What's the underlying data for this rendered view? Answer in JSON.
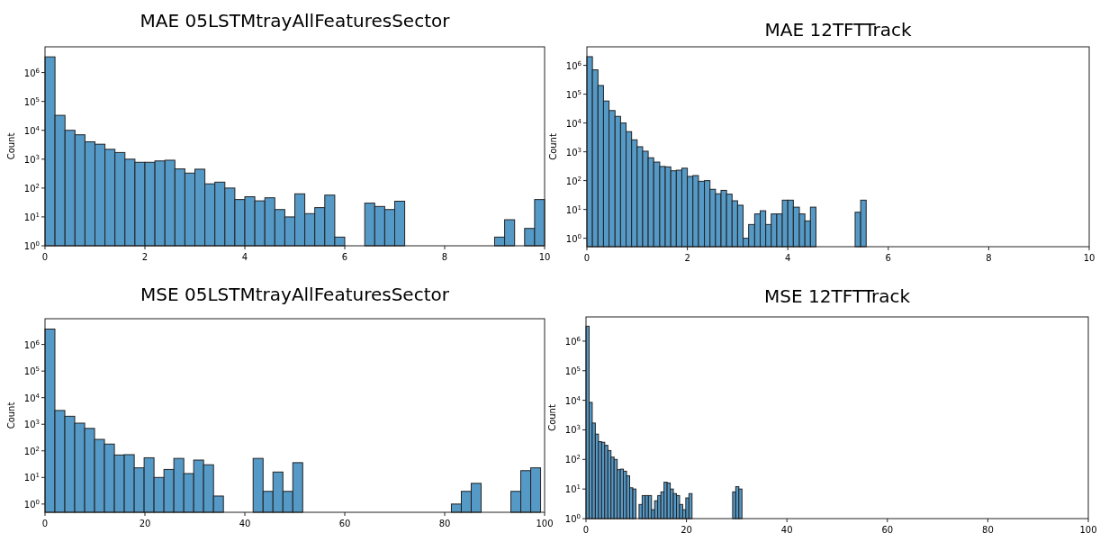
{
  "chart_data": [
    {
      "type": "histogram",
      "title": "MAE 05LSTMtrayAllFeaturesSector",
      "ylabel": "Count",
      "log": true,
      "color": "#5599c7",
      "xlim": [
        0,
        10
      ],
      "xticks": [
        0,
        2,
        4,
        6,
        8,
        10
      ],
      "ylim": [
        1,
        7800000
      ],
      "yticks": [
        {
          "value": 1,
          "label": "10$^{0}$"
        },
        {
          "value": 10,
          "label": "10$^{1}$"
        },
        {
          "value": 100,
          "label": "10$^{2}$"
        },
        {
          "value": 1000,
          "label": "10$^{3}$"
        },
        {
          "value": 10000,
          "label": "10$^{4}$"
        },
        {
          "value": 100000,
          "label": "10$^{5}$"
        },
        {
          "value": 1000000,
          "label": "10$^{6}$"
        }
      ],
      "bins": [
        0,
        0.2,
        0.4,
        0.6,
        0.8,
        1,
        1.2,
        1.4,
        1.6,
        1.8,
        2,
        2.2,
        2.4,
        2.6,
        2.8,
        3,
        3.2,
        3.4,
        3.6,
        3.8,
        4,
        4.2,
        4.4,
        4.6,
        4.8,
        5,
        5.2,
        5.4,
        5.6,
        5.8,
        6,
        6.4,
        6.6,
        6.8,
        7,
        7.2,
        9,
        9.2,
        9.4,
        9.6,
        9.8,
        10
      ],
      "values": [
        3500000,
        33000,
        10000,
        7000,
        4000,
        3300,
        2200,
        1700,
        1000,
        780,
        780,
        870,
        920,
        460,
        330,
        450,
        140,
        160,
        100,
        40,
        50,
        36,
        46,
        18,
        10,
        63,
        13,
        21,
        57,
        2,
        null,
        30,
        23,
        18,
        35,
        null,
        2,
        8,
        null,
        4,
        40
      ]
    },
    {
      "type": "histogram",
      "title": "MAE 12TFTTrack",
      "ylabel": "Count",
      "log": true,
      "color": "#5599c7",
      "xlim": [
        0,
        10
      ],
      "xticks": [
        0,
        2,
        4,
        6,
        8,
        10
      ],
      "ylim": [
        0.51,
        4400000
      ],
      "yticks": [
        {
          "value": 1,
          "label": "10$^{0}$"
        },
        {
          "value": 10,
          "label": "10$^{1}$"
        },
        {
          "value": 100,
          "label": "10$^{2}$"
        },
        {
          "value": 1000,
          "label": "10$^{3}$"
        },
        {
          "value": 10000,
          "label": "10$^{4}$"
        },
        {
          "value": 100000,
          "label": "10$^{5}$"
        },
        {
          "value": 1000000,
          "label": "10$^{6}$"
        }
      ],
      "bins": [
        0,
        0.11,
        0.22,
        0.33,
        0.44,
        0.56,
        0.67,
        0.78,
        0.89,
        1,
        1.11,
        1.22,
        1.33,
        1.45,
        1.56,
        1.67,
        1.78,
        1.89,
        2,
        2.11,
        2.22,
        2.34,
        2.45,
        2.56,
        2.67,
        2.78,
        2.89,
        3,
        3.11,
        3.22,
        3.34,
        3.45,
        3.56,
        3.67,
        3.78,
        3.89,
        4,
        4.11,
        4.23,
        4.34,
        4.45,
        4.56,
        5.34,
        5.45,
        5.56
      ],
      "values": [
        2000000,
        700000,
        200000,
        58000,
        27000,
        17000,
        10000,
        5000,
        2600,
        1500,
        1050,
        620,
        440,
        310,
        300,
        220,
        230,
        270,
        140,
        150,
        95,
        100,
        50,
        35,
        46,
        34,
        20,
        14,
        1,
        3,
        7,
        9,
        3,
        7,
        7,
        21,
        21,
        12,
        7,
        4,
        12,
        null,
        8,
        21
      ]
    },
    {
      "type": "histogram",
      "title": "MSE 05LSTMtrayAllFeaturesSector",
      "ylabel": "Count",
      "log": true,
      "color": "#5599c7",
      "xlim": [
        0,
        100
      ],
      "xticks": [
        0,
        20,
        40,
        60,
        80,
        100
      ],
      "ylim": [
        0.49,
        9300000
      ],
      "yticks": [
        {
          "value": 1,
          "label": "10$^{0}$"
        },
        {
          "value": 10,
          "label": "10$^{1}$"
        },
        {
          "value": 100,
          "label": "10$^{2}$"
        },
        {
          "value": 1000,
          "label": "10$^{3}$"
        },
        {
          "value": 10000,
          "label": "10$^{4}$"
        },
        {
          "value": 100000,
          "label": "10$^{5}$"
        },
        {
          "value": 1000000,
          "label": "10$^{6}$"
        }
      ],
      "bins": [
        0,
        1.98,
        3.97,
        5.95,
        7.94,
        9.92,
        11.9,
        13.89,
        15.87,
        17.86,
        19.84,
        21.82,
        23.81,
        25.79,
        27.78,
        29.76,
        31.74,
        33.73,
        35.71,
        41.66,
        43.65,
        45.63,
        47.62,
        49.6,
        51.58,
        81.34,
        83.33,
        85.31,
        87.3,
        93.25,
        95.23,
        97.22,
        99.2
      ],
      "values": [
        3800000,
        3300,
        2000,
        1100,
        700,
        270,
        180,
        70,
        72,
        23,
        55,
        10,
        20,
        52,
        14,
        45,
        30,
        2,
        null,
        52,
        3,
        16,
        3,
        36,
        null,
        1,
        3,
        6,
        null,
        3,
        18,
        23
      ]
    },
    {
      "type": "histogram",
      "title": "MSE 12TFTTrack",
      "ylabel": "Count",
      "log": true,
      "color": "#5599c7",
      "xlim": [
        0,
        100
      ],
      "xticks": [
        0,
        20,
        40,
        60,
        80,
        100
      ],
      "ylim": [
        1,
        6600000
      ],
      "yticks": [
        {
          "value": 1,
          "label": "10$^{0}$"
        },
        {
          "value": 10,
          "label": "10$^{1}$"
        },
        {
          "value": 100,
          "label": "10$^{2}$"
        },
        {
          "value": 1000,
          "label": "10$^{3}$"
        },
        {
          "value": 10000,
          "label": "10$^{4}$"
        },
        {
          "value": 100000,
          "label": "10$^{5}$"
        },
        {
          "value": 1000000,
          "label": "10$^{6}$"
        }
      ],
      "bins": [
        0,
        0.62,
        1.24,
        1.86,
        2.48,
        3.11,
        3.73,
        4.35,
        4.97,
        5.59,
        6.21,
        6.83,
        7.45,
        8.07,
        8.69,
        9.32,
        9.94,
        10.56,
        11.18,
        11.8,
        12.42,
        13.04,
        13.66,
        14.28,
        14.9,
        15.53,
        16.15,
        16.77,
        17.39,
        18.01,
        18.63,
        19.25,
        19.87,
        20.49,
        21.11,
        29.19,
        29.81,
        30.43,
        31.05
      ],
      "values": [
        3200000,
        8500,
        1700,
        720,
        400,
        380,
        300,
        200,
        120,
        100,
        45,
        47,
        40,
        28,
        11,
        10,
        null,
        3,
        6,
        6,
        6,
        2,
        4,
        6,
        8,
        17,
        16,
        10,
        7,
        6,
        3,
        2,
        5,
        7,
        null,
        8,
        12,
        10
      ]
    }
  ]
}
